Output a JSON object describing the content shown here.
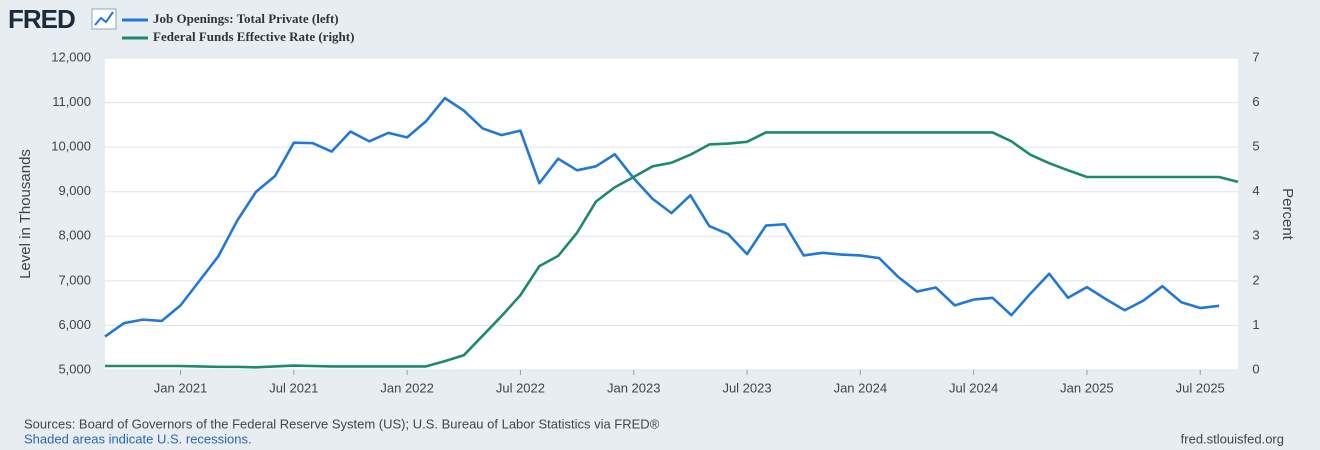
{
  "chart_data": {
    "type": "line",
    "logo": "FRED",
    "x": [
      "2020-09",
      "2020-10",
      "2020-11",
      "2020-12",
      "2021-01",
      "2021-02",
      "2021-03",
      "2021-04",
      "2021-05",
      "2021-06",
      "2021-07",
      "2021-08",
      "2021-09",
      "2021-10",
      "2021-11",
      "2021-12",
      "2022-01",
      "2022-02",
      "2022-03",
      "2022-04",
      "2022-05",
      "2022-06",
      "2022-07",
      "2022-08",
      "2022-09",
      "2022-10",
      "2022-11",
      "2022-12",
      "2023-01",
      "2023-02",
      "2023-03",
      "2023-04",
      "2023-05",
      "2023-06",
      "2023-07",
      "2023-08",
      "2023-09",
      "2023-10",
      "2023-11",
      "2023-12",
      "2024-01",
      "2024-02",
      "2024-03",
      "2024-04",
      "2024-05",
      "2024-06",
      "2024-07",
      "2024-08",
      "2024-09",
      "2024-10",
      "2024-11",
      "2024-12",
      "2025-01",
      "2025-02",
      "2025-03",
      "2025-04",
      "2025-05",
      "2025-06",
      "2025-07",
      "2025-08",
      "2025-09"
    ],
    "series": [
      {
        "name": "Job Openings: Total Private (left)",
        "color": "#2278d8",
        "axis": "y",
        "values": [
          5750,
          6050,
          6130,
          6100,
          6450,
          7000,
          7550,
          8350,
          9000,
          9350,
          10100,
          10090,
          9900,
          10350,
          10130,
          10320,
          10220,
          10580,
          11100,
          10820,
          10420,
          10270,
          10370,
          9190,
          9740,
          9480,
          9570,
          9840,
          9300,
          8840,
          8520,
          8920,
          8230,
          8050,
          7600,
          8240,
          8270,
          7570,
          7630,
          7590,
          7570,
          7510,
          7090,
          6760,
          6850,
          6450,
          6580,
          6620,
          6230,
          6710,
          7160,
          6620,
          6860,
          6590,
          6340,
          6560,
          6880,
          6520,
          6390,
          6440,
          null
        ]
      },
      {
        "name": "Federal Funds Effective Rate (right)",
        "color": "#1d8a6e",
        "axis": "y2",
        "values": [
          0.09,
          0.09,
          0.09,
          0.09,
          0.09,
          0.08,
          0.07,
          0.07,
          0.06,
          0.08,
          0.1,
          0.09,
          0.08,
          0.08,
          0.08,
          0.08,
          0.08,
          0.08,
          0.2,
          0.33,
          0.77,
          1.21,
          1.68,
          2.33,
          2.56,
          3.08,
          3.78,
          4.1,
          4.33,
          4.57,
          4.65,
          4.83,
          5.06,
          5.08,
          5.12,
          5.33,
          5.33,
          5.33,
          5.33,
          5.33,
          5.33,
          5.33,
          5.33,
          5.33,
          5.33,
          5.33,
          5.33,
          5.33,
          5.13,
          4.83,
          4.64,
          4.48,
          4.33,
          4.33,
          4.33,
          4.33,
          4.33,
          4.33,
          4.33,
          4.33,
          4.22
        ]
      }
    ],
    "xticks": [
      {
        "value": "2021-01",
        "label": "Jan 2021"
      },
      {
        "value": "2021-07",
        "label": "Jul 2021"
      },
      {
        "value": "2022-01",
        "label": "Jan 2022"
      },
      {
        "value": "2022-07",
        "label": "Jul 2022"
      },
      {
        "value": "2023-01",
        "label": "Jan 2023"
      },
      {
        "value": "2023-07",
        "label": "Jul 2023"
      },
      {
        "value": "2024-01",
        "label": "Jan 2024"
      },
      {
        "value": "2024-07",
        "label": "Jul 2024"
      },
      {
        "value": "2025-01",
        "label": "Jan 2025"
      },
      {
        "value": "2025-07",
        "label": "Jul 2025"
      }
    ],
    "ylim": [
      5000,
      12000
    ],
    "yticks": [
      {
        "value": 5000,
        "label": "5,000"
      },
      {
        "value": 6000,
        "label": "6,000"
      },
      {
        "value": 7000,
        "label": "7,000"
      },
      {
        "value": 8000,
        "label": "8,000"
      },
      {
        "value": 9000,
        "label": "9,000"
      },
      {
        "value": 10000,
        "label": "10,000"
      },
      {
        "value": 11000,
        "label": "11,000"
      },
      {
        "value": 12000,
        "label": "12,000"
      }
    ],
    "y2lim": [
      0,
      7
    ],
    "y2ticks": [
      0,
      1,
      2,
      3,
      4,
      5,
      6,
      7
    ],
    "y_label": "Level in Thousands",
    "y2_label": "Percent",
    "grid": true,
    "source": "Sources: Board of Governors of the Federal Reserve System (US); U.S. Bureau of Labor Statistics via FRED®",
    "note": "Shaded areas indicate U.S. recessions.",
    "credit": "fred.stlouisfed.org"
  }
}
